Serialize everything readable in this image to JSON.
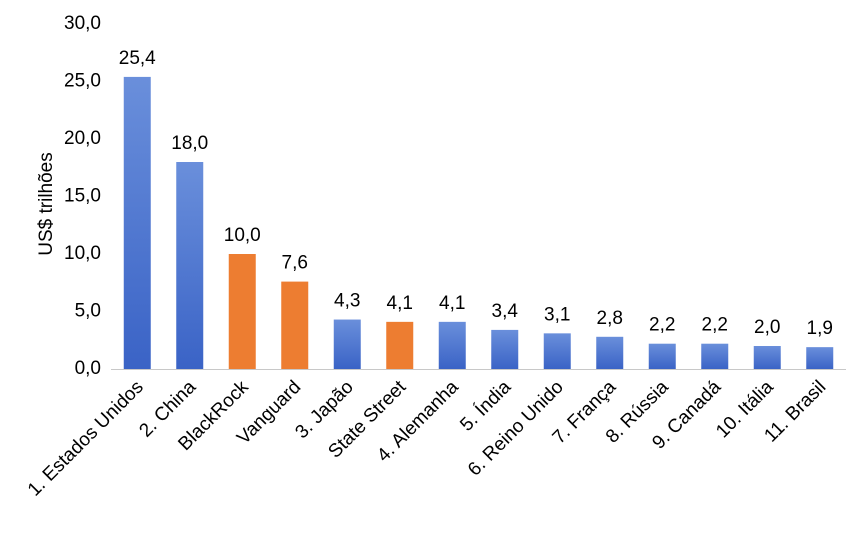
{
  "chart_data": {
    "type": "bar",
    "ylabel": "US$ trilhões",
    "ylim": [
      0,
      30
    ],
    "ytick_labels": [
      "0,0",
      "5,0",
      "10,0",
      "15,0",
      "20,0",
      "25,0",
      "30,0"
    ],
    "grid": false,
    "categories": [
      "1. Estados Unidos",
      "2. China",
      "BlackRock",
      "Vanguard",
      "3. Japão",
      "State Street",
      "4. Alemanha",
      "5. Índia",
      "6. Reino Unido",
      "7. França",
      "8. Rússia",
      "9. Canadá",
      "10. Itália",
      "11. Brasil"
    ],
    "values": [
      25.4,
      18.0,
      10.0,
      7.6,
      4.3,
      4.1,
      4.1,
      3.4,
      3.1,
      2.8,
      2.2,
      2.2,
      2.0,
      1.9
    ],
    "value_labels": [
      "25,4",
      "18,0",
      "10,0",
      "7,6",
      "4,3",
      "4,1",
      "4,1",
      "3,4",
      "3,1",
      "2,8",
      "2,2",
      "2,2",
      "2,0",
      "1,9"
    ],
    "bar_kinds": [
      "country",
      "country",
      "asset_manager",
      "asset_manager",
      "country",
      "asset_manager",
      "country",
      "country",
      "country",
      "country",
      "country",
      "country",
      "country",
      "country"
    ],
    "colors": {
      "country_top": "#6a8fdb",
      "country_bottom": "#3a63c6",
      "asset_manager": "#ed7d31",
      "axis": "#c8c8c8",
      "text": "#000000"
    }
  }
}
